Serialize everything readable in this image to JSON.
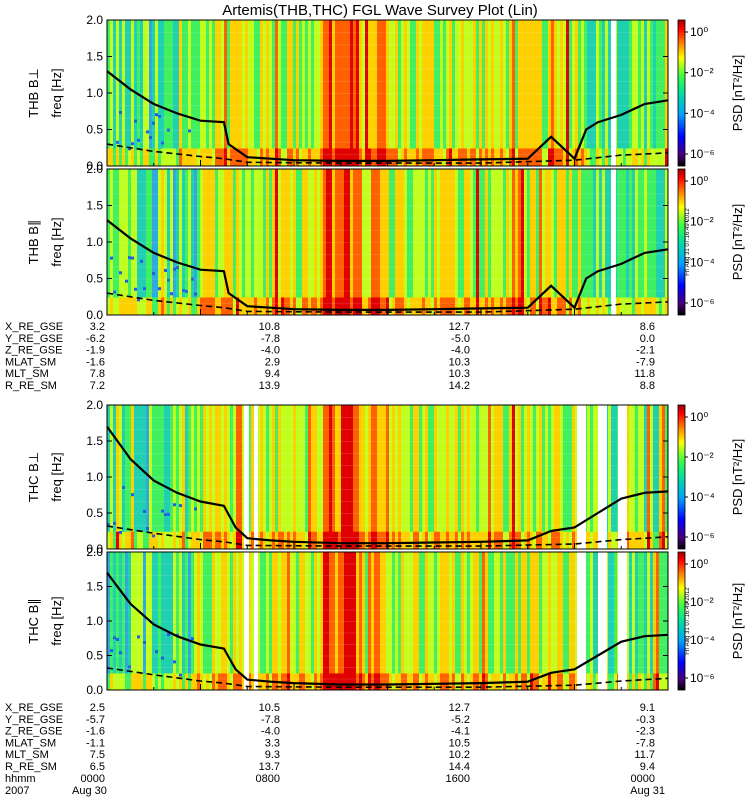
{
  "title": "Artemis(THB,THC) FGL Wave Survey Plot (Lin)",
  "colors": {
    "background": "#ffffff",
    "colorbar_stops": [
      "#1a0060",
      "#0000ff",
      "#00a0ff",
      "#00e0a0",
      "#40ff40",
      "#ffff00",
      "#ff8000",
      "#ff0000",
      "#b00000"
    ]
  },
  "chart_data": [
    {
      "type": "heatmap",
      "panel_id": "thb-bperp",
      "ylabel_probe": "THB B⊥",
      "ylabel_axis": "freq [Hz]",
      "ylim": [
        0,
        2.0
      ],
      "yticks": [
        "0.0",
        "0.5",
        "1.0",
        "1.5",
        "2.0"
      ],
      "colorbar_label": "PSD [nT²/Hz]",
      "colorbar_ticks": [
        "10⁰",
        "10⁻²",
        "10⁻⁴",
        "10⁻⁶"
      ],
      "colorbar_scale": "log",
      "lines": [
        {
          "name": "solid",
          "x": [
            0,
            1,
            2,
            3,
            4,
            5,
            5.2,
            6,
            7,
            8,
            10,
            12,
            14,
            16,
            18,
            19,
            20,
            20.5,
            21,
            22,
            23,
            24
          ],
          "y": [
            1.3,
            1.05,
            0.85,
            0.72,
            0.62,
            0.6,
            0.3,
            0.12,
            0.1,
            0.08,
            0.07,
            0.07,
            0.08,
            0.09,
            0.1,
            0.4,
            0.1,
            0.5,
            0.6,
            0.7,
            0.85,
            0.9
          ]
        },
        {
          "name": "dashed",
          "x": [
            0,
            2,
            4,
            5,
            6,
            10,
            16,
            20,
            22,
            24
          ],
          "y": [
            0.3,
            0.2,
            0.13,
            0.1,
            0.05,
            0.04,
            0.04,
            0.08,
            0.15,
            0.18
          ]
        }
      ]
    },
    {
      "type": "heatmap",
      "panel_id": "thb-bpar",
      "ylabel_probe": "THB B∥",
      "ylabel_axis": "freq [Hz]",
      "ylim": [
        0,
        2.0
      ],
      "yticks": [
        "0.0",
        "0.5",
        "1.0",
        "1.5",
        "2.0"
      ],
      "colorbar_label": "PSD [nT²/Hz]",
      "colorbar_ticks": [
        "10⁰",
        "10⁻²",
        "10⁻⁴",
        "10⁻⁶"
      ],
      "colorbar_scale": "log",
      "stamp": "Fri Aug 31 07:16:49 2012",
      "lines": [
        {
          "name": "solid",
          "x": [
            0,
            1,
            2,
            3,
            4,
            5,
            5.2,
            6,
            7,
            8,
            10,
            12,
            14,
            16,
            18,
            19,
            20,
            20.5,
            21,
            22,
            23,
            24
          ],
          "y": [
            1.3,
            1.05,
            0.85,
            0.72,
            0.62,
            0.6,
            0.3,
            0.12,
            0.1,
            0.08,
            0.07,
            0.07,
            0.08,
            0.09,
            0.1,
            0.4,
            0.1,
            0.5,
            0.6,
            0.7,
            0.85,
            0.9
          ]
        },
        {
          "name": "dashed",
          "x": [
            0,
            2,
            4,
            5,
            6,
            10,
            16,
            20,
            22,
            24
          ],
          "y": [
            0.3,
            0.2,
            0.13,
            0.1,
            0.05,
            0.04,
            0.04,
            0.08,
            0.15,
            0.18
          ]
        }
      ]
    },
    {
      "type": "heatmap",
      "panel_id": "thc-bperp",
      "ylabel_probe": "THC B⊥",
      "ylabel_axis": "freq [Hz]",
      "ylim": [
        0,
        2.0
      ],
      "yticks": [
        "0.0",
        "0.5",
        "1.0",
        "1.5",
        "2.0"
      ],
      "colorbar_label": "PSD [nT²/Hz]",
      "colorbar_ticks": [
        "10⁰",
        "10⁻²",
        "10⁻⁴",
        "10⁻⁶"
      ],
      "colorbar_scale": "log",
      "lines": [
        {
          "name": "solid",
          "x": [
            0,
            1,
            2,
            3,
            4,
            5,
            5.5,
            6,
            7,
            8,
            10,
            12,
            14,
            16,
            18,
            19,
            20,
            21,
            22,
            23,
            24
          ],
          "y": [
            1.7,
            1.25,
            0.95,
            0.78,
            0.66,
            0.6,
            0.3,
            0.15,
            0.12,
            0.1,
            0.08,
            0.08,
            0.09,
            0.1,
            0.12,
            0.25,
            0.3,
            0.5,
            0.7,
            0.78,
            0.8
          ]
        },
        {
          "name": "dashed",
          "x": [
            0,
            2,
            4,
            5,
            6,
            10,
            16,
            20,
            22,
            24
          ],
          "y": [
            0.32,
            0.22,
            0.13,
            0.1,
            0.05,
            0.04,
            0.04,
            0.07,
            0.13,
            0.17
          ]
        }
      ]
    },
    {
      "type": "heatmap",
      "panel_id": "thc-bpar",
      "ylabel_probe": "THC B∥",
      "ylabel_axis": "freq [Hz]",
      "ylim": [
        0,
        2.0
      ],
      "yticks": [
        "0.0",
        "0.5",
        "1.0",
        "1.5",
        "2.0"
      ],
      "colorbar_label": "PSD [nT²/Hz]",
      "colorbar_ticks": [
        "10⁰",
        "10⁻²",
        "10⁻⁴",
        "10⁻⁶"
      ],
      "colorbar_scale": "log",
      "stamp": "Fri Aug 31 07:16:49 2012",
      "lines": [
        {
          "name": "solid",
          "x": [
            0,
            1,
            2,
            3,
            4,
            5,
            5.5,
            6,
            7,
            8,
            10,
            12,
            14,
            16,
            18,
            19,
            20,
            21,
            22,
            23,
            24
          ],
          "y": [
            1.7,
            1.25,
            0.95,
            0.78,
            0.66,
            0.6,
            0.3,
            0.15,
            0.12,
            0.1,
            0.08,
            0.08,
            0.09,
            0.1,
            0.12,
            0.25,
            0.3,
            0.5,
            0.7,
            0.78,
            0.8
          ]
        },
        {
          "name": "dashed",
          "x": [
            0,
            2,
            4,
            5,
            6,
            10,
            16,
            20,
            22,
            24
          ],
          "y": [
            0.32,
            0.22,
            0.13,
            0.1,
            0.05,
            0.04,
            0.04,
            0.07,
            0.13,
            0.17
          ]
        }
      ]
    }
  ],
  "ephemeris": [
    {
      "group": "thb",
      "columns": [
        "",
        "",
        "",
        ""
      ],
      "rows": [
        {
          "label": "X_RE_GSE",
          "values": [
            "3.2",
            "10.8",
            "12.7",
            "8.6"
          ]
        },
        {
          "label": "Y_RE_GSE",
          "values": [
            "-6.2",
            "-7.8",
            "-5.0",
            "0.0"
          ]
        },
        {
          "label": "Z_RE_GSE",
          "values": [
            "-1.9",
            "-4.0",
            "-4.0",
            "-2.1"
          ]
        },
        {
          "label": "MLAT_SM",
          "values": [
            "-1.6",
            "2.9",
            "10.3",
            "-7.9"
          ]
        },
        {
          "label": "MLT_SM",
          "values": [
            "7.8",
            "9.4",
            "10.3",
            "11.8"
          ]
        },
        {
          "label": "R_RE_SM",
          "values": [
            "7.2",
            "13.9",
            "14.2",
            "8.8"
          ]
        }
      ]
    },
    {
      "group": "thc",
      "rows": [
        {
          "label": "X_RE_GSE",
          "values": [
            "2.5",
            "10.5",
            "12.7",
            "9.1"
          ]
        },
        {
          "label": "Y_RE_GSE",
          "values": [
            "-5.7",
            "-7.8",
            "-5.2",
            "-0.3"
          ]
        },
        {
          "label": "Z_RE_GSE",
          "values": [
            "-1.6",
            "-4.0",
            "-4.1",
            "-2.3"
          ]
        },
        {
          "label": "MLAT_SM",
          "values": [
            "-1.1",
            "3.3",
            "10.5",
            "-7.8"
          ]
        },
        {
          "label": "MLT_SM",
          "values": [
            "7.5",
            "9.3",
            "10.2",
            "11.7"
          ]
        },
        {
          "label": "R_RE_SM",
          "values": [
            "6.5",
            "13.7",
            "14.4",
            "9.4"
          ]
        },
        {
          "label": "hhmm",
          "values": [
            "0000",
            "0800",
            "1600",
            "0000"
          ]
        }
      ]
    }
  ],
  "time_axis": {
    "year": "2007",
    "start_date": "Aug 30",
    "end_date": "Aug 31"
  }
}
